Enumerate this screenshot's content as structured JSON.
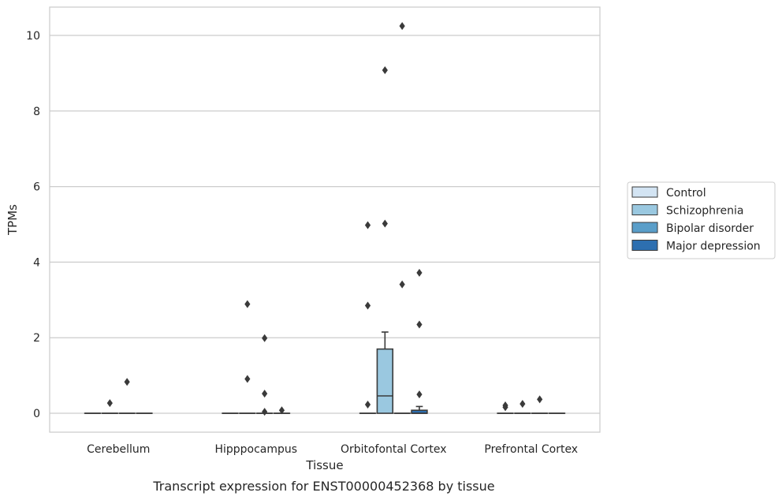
{
  "chart_data": {
    "type": "box",
    "xlabel": "Tissue",
    "ylabel": "TPMs",
    "caption": "Transcript expression for ENST00000452368 by tissue",
    "ylim": [
      -0.5,
      10.75
    ],
    "yticks": [
      0,
      2,
      4,
      6,
      8,
      10
    ],
    "grid": true,
    "legend_position": "right",
    "categories": [
      "Cerebellum",
      "Hipppocampus",
      "Orbitofontal Cortex",
      "Prefrontal Cortex"
    ],
    "series": [
      {
        "name": "Control",
        "color": "#d3e4f3",
        "boxes": [
          {
            "q1": 0,
            "median": 0,
            "q3": 0,
            "whisker_low": 0,
            "whisker_high": 0,
            "outliers": []
          },
          {
            "q1": 0,
            "median": 0,
            "q3": 0,
            "whisker_low": 0,
            "whisker_high": 0,
            "outliers": []
          },
          {
            "q1": 0,
            "median": 0,
            "q3": 0,
            "whisker_low": 0,
            "whisker_high": 0,
            "outliers": [
              0.23,
              2.85,
              4.98
            ]
          },
          {
            "q1": 0,
            "median": 0,
            "q3": 0,
            "whisker_low": 0,
            "whisker_high": 0,
            "outliers": [
              0.16,
              0.21
            ]
          }
        ]
      },
      {
        "name": "Schizophrenia",
        "color": "#9ac8e0",
        "boxes": [
          {
            "q1": 0,
            "median": 0,
            "q3": 0,
            "whisker_low": 0,
            "whisker_high": 0,
            "outliers": [
              0.27
            ]
          },
          {
            "q1": 0,
            "median": 0,
            "q3": 0,
            "whisker_low": 0,
            "whisker_high": 0,
            "outliers": [
              0.91,
              2.89
            ]
          },
          {
            "q1": 0,
            "median": 0.46,
            "q3": 1.7,
            "whisker_low": 0,
            "whisker_high": 2.15,
            "outliers": [
              5.02,
              9.08
            ]
          },
          {
            "q1": 0,
            "median": 0,
            "q3": 0,
            "whisker_low": 0,
            "whisker_high": 0,
            "outliers": [
              0.25
            ]
          }
        ]
      },
      {
        "name": "Bipolar disorder",
        "color": "#5a9ec9",
        "boxes": [
          {
            "q1": 0,
            "median": 0,
            "q3": 0,
            "whisker_low": 0,
            "whisker_high": 0,
            "outliers": [
              0.83
            ]
          },
          {
            "q1": 0,
            "median": 0,
            "q3": 0,
            "whisker_low": 0,
            "whisker_high": 0,
            "outliers": [
              0.04,
              0.52,
              1.99
            ]
          },
          {
            "q1": 0,
            "median": 0,
            "q3": 0,
            "whisker_low": 0,
            "whisker_high": 0,
            "outliers": [
              3.41,
              10.25
            ]
          },
          {
            "q1": 0,
            "median": 0,
            "q3": 0,
            "whisker_low": 0,
            "whisker_high": 0,
            "outliers": [
              0.37
            ]
          }
        ]
      },
      {
        "name": "Major depression",
        "color": "#2d6fb0",
        "boxes": [
          {
            "q1": 0,
            "median": 0,
            "q3": 0,
            "whisker_low": 0,
            "whisker_high": 0,
            "outliers": []
          },
          {
            "q1": 0,
            "median": 0,
            "q3": 0,
            "whisker_low": 0,
            "whisker_high": 0,
            "outliers": [
              0.08
            ]
          },
          {
            "q1": 0,
            "median": 0,
            "q3": 0.08,
            "whisker_low": 0,
            "whisker_high": 0.18,
            "outliers": [
              0.5,
              2.35,
              3.72
            ]
          },
          {
            "q1": 0,
            "median": 0,
            "q3": 0,
            "whisker_low": 0,
            "whisker_high": 0,
            "outliers": []
          }
        ]
      }
    ]
  }
}
